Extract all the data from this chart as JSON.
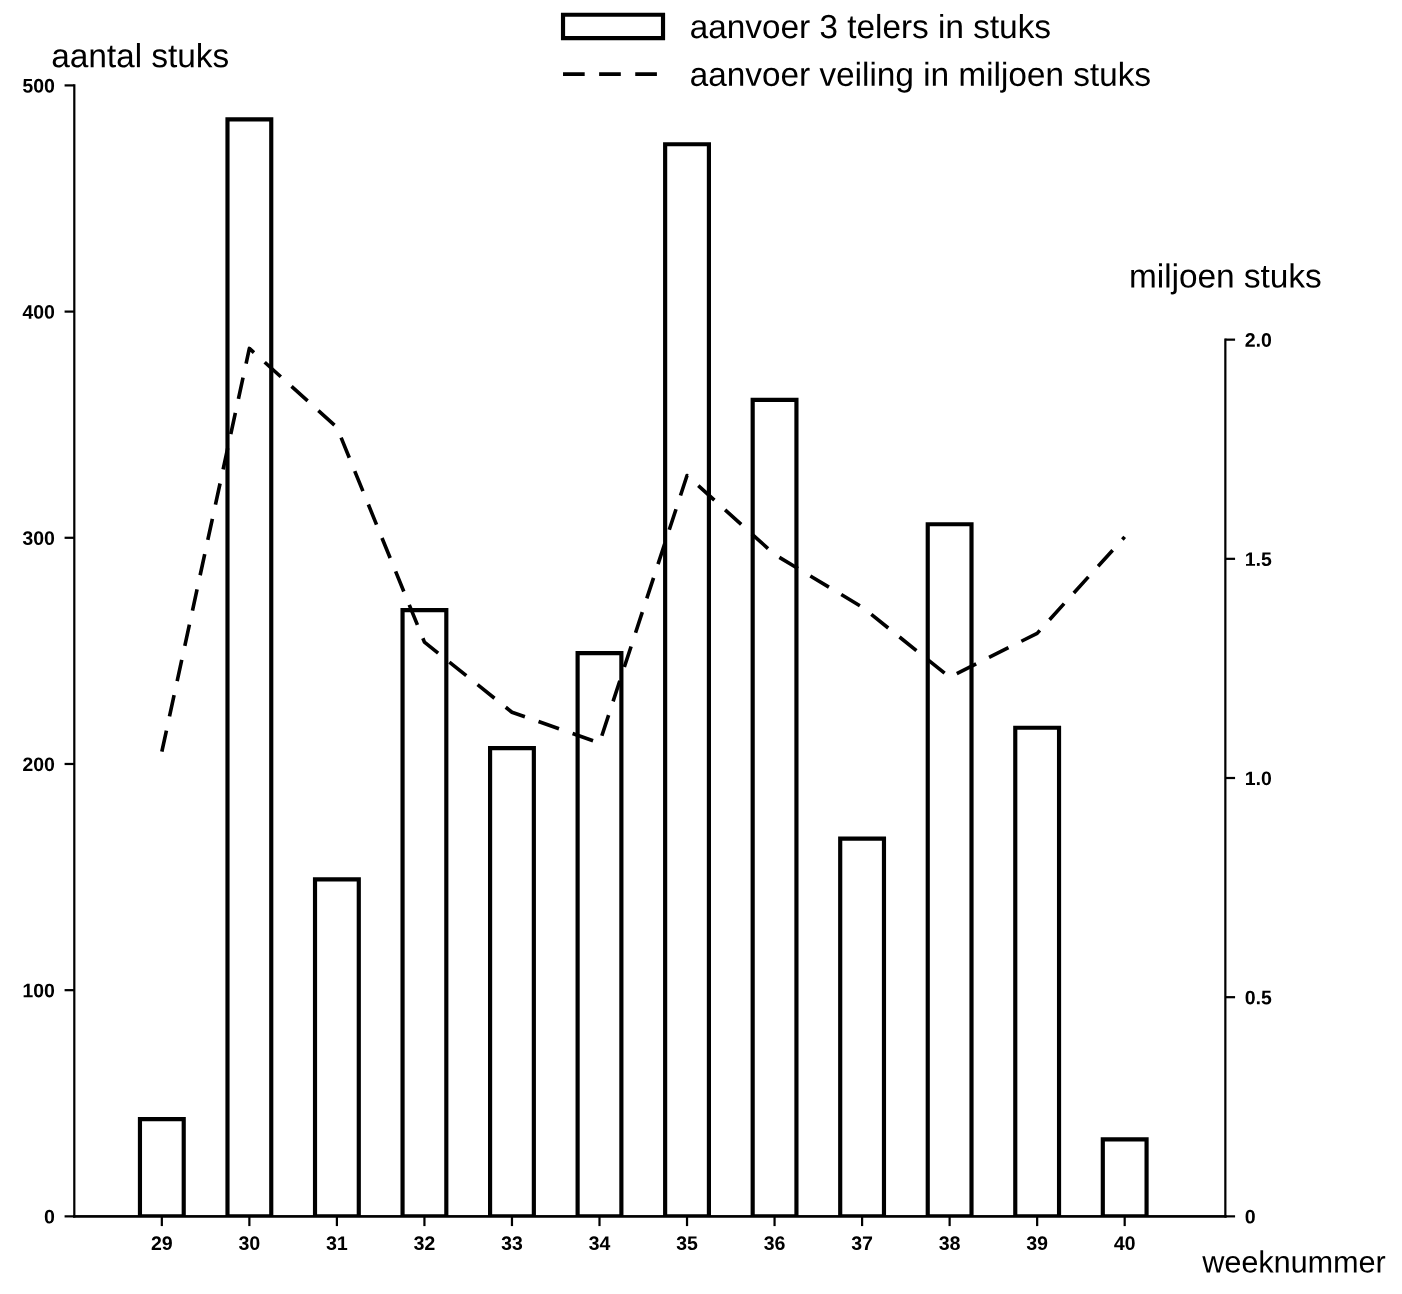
{
  "chart_data": {
    "type": "bar",
    "xlabel": "weeknummer",
    "ylabel": "aantal stuks",
    "y2label": "miljoen stuks",
    "categories": [
      "29",
      "30",
      "31",
      "32",
      "33",
      "34",
      "35",
      "36",
      "37",
      "38",
      "39",
      "40"
    ],
    "series": [
      {
        "name": "aanvoer 3 telers in stuks",
        "color": "#000000",
        "values": [
          43,
          485,
          149,
          268,
          207,
          249,
          474,
          361,
          167,
          306,
          216,
          34
        ]
      },
      {
        "name": "aanvoer veiling in miljoen stuks",
        "type": "line",
        "axis": "y2",
        "color": "#000000",
        "line_style": "dashed",
        "marker": "none",
        "values": [
          1.06,
          1.98,
          1.8,
          1.31,
          1.15,
          1.08,
          1.69,
          1.51,
          1.39,
          1.23,
          1.33,
          1.55
        ]
      }
    ],
    "ylim": [
      0,
      500
    ],
    "yticks": [
      0,
      100,
      200,
      300,
      400,
      500
    ],
    "y2lim": [
      0,
      2.58
    ],
    "y2ticks": [
      0,
      {
        "value": 0.5,
        "label": "0.5"
      },
      {
        "value": 1.0,
        "label": "1.0"
      },
      {
        "value": 1.5,
        "label": "1.5"
      },
      {
        "value": 2.0,
        "label": "2.0"
      }
    ],
    "grid": false,
    "legend": "top"
  }
}
